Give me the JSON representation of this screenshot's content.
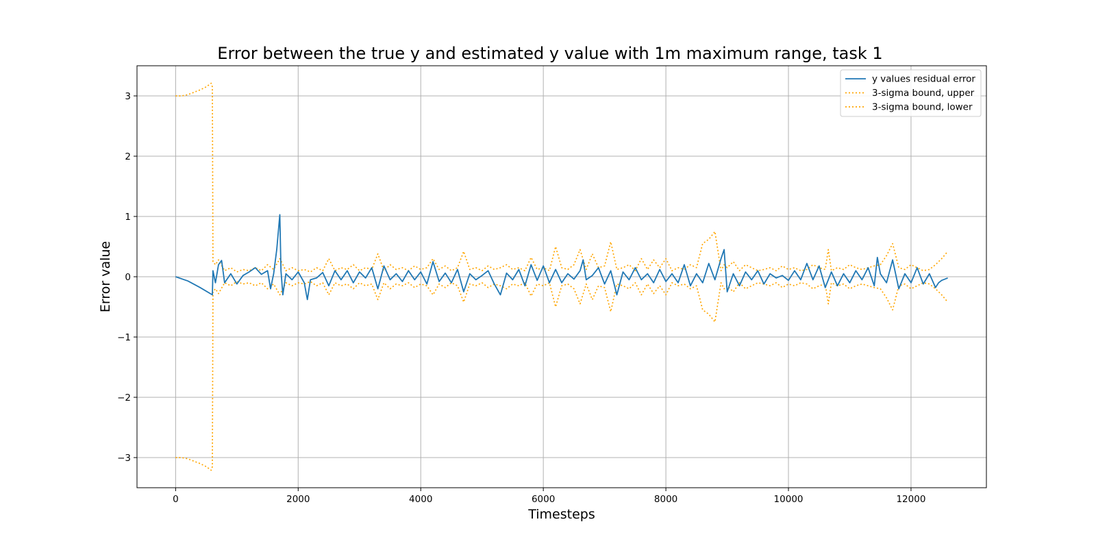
{
  "chart_data": {
    "type": "line",
    "title": "Error between the true y and estimated y value with 1m maximum range, task 1",
    "xlabel": "Timesteps",
    "ylabel": "Error value",
    "xlim": [
      -630,
      13230
    ],
    "ylim": [
      -3.5,
      3.5
    ],
    "xticks": [
      0,
      2000,
      4000,
      6000,
      8000,
      10000,
      12000
    ],
    "xtick_labels": [
      "0",
      "2000",
      "4000",
      "6000",
      "8000",
      "10000",
      "12000"
    ],
    "yticks": [
      -3,
      -2,
      -1,
      0,
      1,
      2,
      3
    ],
    "ytick_labels": [
      "−3",
      "−2",
      "−1",
      "0",
      "1",
      "2",
      "3"
    ],
    "grid": true,
    "legend_position": "top-right",
    "series": [
      {
        "name": "y values residual error",
        "color": "#1f77b4",
        "style": "solid",
        "x": [
          0,
          200,
          400,
          600,
          610,
          650,
          700,
          750,
          800,
          900,
          1000,
          1100,
          1200,
          1300,
          1400,
          1500,
          1550,
          1600,
          1650,
          1700,
          1720,
          1750,
          1800,
          1900,
          2000,
          2100,
          2150,
          2200,
          2300,
          2400,
          2500,
          2600,
          2700,
          2800,
          2900,
          3000,
          3100,
          3200,
          3300,
          3400,
          3500,
          3600,
          3700,
          3800,
          3900,
          4000,
          4100,
          4200,
          4300,
          4400,
          4500,
          4600,
          4700,
          4800,
          4900,
          5000,
          5100,
          5200,
          5300,
          5400,
          5500,
          5600,
          5700,
          5800,
          5900,
          6000,
          6100,
          6200,
          6300,
          6400,
          6500,
          6600,
          6650,
          6700,
          6800,
          6900,
          7000,
          7100,
          7200,
          7300,
          7400,
          7500,
          7600,
          7700,
          7800,
          7900,
          8000,
          8100,
          8200,
          8300,
          8400,
          8500,
          8600,
          8700,
          8800,
          8900,
          8950,
          9000,
          9100,
          9200,
          9300,
          9400,
          9500,
          9600,
          9700,
          9800,
          9900,
          10000,
          10100,
          10200,
          10300,
          10400,
          10500,
          10600,
          10700,
          10800,
          10900,
          11000,
          11100,
          11200,
          11300,
          11400,
          11450,
          11500,
          11600,
          11700,
          11800,
          11900,
          12000,
          12100,
          12200,
          12300,
          12400,
          12450,
          12500,
          12600
        ],
        "y": [
          0.0,
          -0.07,
          -0.18,
          -0.3,
          0.1,
          -0.1,
          0.2,
          0.27,
          -0.1,
          0.05,
          -0.12,
          0.02,
          0.08,
          0.15,
          0.04,
          0.1,
          -0.2,
          0.05,
          0.45,
          1.03,
          0.1,
          -0.3,
          0.05,
          -0.05,
          0.08,
          -0.1,
          -0.38,
          -0.05,
          -0.02,
          0.07,
          -0.15,
          0.1,
          -0.05,
          0.1,
          -0.1,
          0.08,
          -0.02,
          0.15,
          -0.2,
          0.18,
          -0.05,
          0.05,
          -0.08,
          0.1,
          -0.05,
          0.08,
          -0.12,
          0.25,
          -0.08,
          0.06,
          -0.1,
          0.12,
          -0.25,
          0.05,
          -0.05,
          0.02,
          0.1,
          -0.12,
          -0.3,
          0.06,
          -0.05,
          0.12,
          -0.15,
          0.2,
          -0.06,
          0.18,
          -0.1,
          0.12,
          -0.1,
          0.05,
          -0.04,
          0.1,
          0.28,
          -0.05,
          0.02,
          0.15,
          -0.12,
          0.1,
          -0.3,
          0.08,
          -0.05,
          0.15,
          -0.05,
          0.05,
          -0.1,
          0.12,
          -0.08,
          0.05,
          -0.1,
          0.2,
          -0.15,
          0.05,
          -0.1,
          0.22,
          -0.05,
          0.3,
          0.45,
          -0.25,
          0.05,
          -0.15,
          0.08,
          -0.05,
          0.1,
          -0.12,
          0.05,
          -0.02,
          0.02,
          -0.06,
          0.1,
          -0.05,
          0.22,
          -0.05,
          0.18,
          -0.18,
          0.08,
          -0.15,
          0.05,
          -0.1,
          0.1,
          -0.05,
          0.15,
          -0.15,
          0.32,
          0.05,
          -0.1,
          0.28,
          -0.2,
          0.05,
          -0.1,
          0.15,
          -0.12,
          0.05,
          -0.18,
          -0.1,
          -0.06,
          -0.02
        ]
      },
      {
        "name": "3-sigma bound, upper",
        "color": "#ffa500",
        "style": "dotted",
        "x": [
          0,
          100,
          200,
          300,
          400,
          500,
          580,
          600,
          610,
          650,
          700,
          800,
          900,
          1000,
          1100,
          1200,
          1300,
          1400,
          1500,
          1600,
          1700,
          1800,
          1900,
          2000,
          2100,
          2200,
          2300,
          2400,
          2500,
          2600,
          2700,
          2800,
          2900,
          3000,
          3100,
          3200,
          3300,
          3400,
          3500,
          3600,
          3700,
          3800,
          3900,
          4000,
          4100,
          4200,
          4300,
          4400,
          4500,
          4600,
          4700,
          4800,
          4900,
          5000,
          5100,
          5200,
          5300,
          5400,
          5500,
          5600,
          5700,
          5800,
          5900,
          6000,
          6100,
          6200,
          6300,
          6400,
          6500,
          6600,
          6700,
          6800,
          6900,
          7000,
          7100,
          7200,
          7300,
          7400,
          7500,
          7600,
          7700,
          7800,
          7900,
          8000,
          8100,
          8200,
          8300,
          8400,
          8500,
          8600,
          8700,
          8800,
          8900,
          8950,
          9000,
          9100,
          9200,
          9300,
          9400,
          9500,
          9600,
          9700,
          9800,
          9900,
          10000,
          10100,
          10200,
          10300,
          10400,
          10500,
          10600,
          10650,
          10700,
          10800,
          10900,
          11000,
          11100,
          11200,
          11300,
          11400,
          11500,
          11600,
          11700,
          11800,
          11900,
          12000,
          12100,
          12200,
          12300,
          12400,
          12500,
          12600
        ],
        "y": [
          3.0,
          3.0,
          3.02,
          3.06,
          3.1,
          3.15,
          3.21,
          3.15,
          0.25,
          0.2,
          0.28,
          0.1,
          0.15,
          0.08,
          0.12,
          0.1,
          0.15,
          0.1,
          0.2,
          0.12,
          0.3,
          0.1,
          0.15,
          0.1,
          0.12,
          0.08,
          0.15,
          0.1,
          0.3,
          0.1,
          0.15,
          0.12,
          0.2,
          0.1,
          0.15,
          0.12,
          0.38,
          0.1,
          0.2,
          0.12,
          0.15,
          0.1,
          0.18,
          0.12,
          0.15,
          0.3,
          0.12,
          0.18,
          0.1,
          0.15,
          0.42,
          0.12,
          0.15,
          0.1,
          0.18,
          0.12,
          0.15,
          0.2,
          0.12,
          0.15,
          0.1,
          0.32,
          0.12,
          0.15,
          0.1,
          0.5,
          0.15,
          0.12,
          0.2,
          0.45,
          0.12,
          0.38,
          0.15,
          0.18,
          0.58,
          0.12,
          0.15,
          0.2,
          0.1,
          0.3,
          0.12,
          0.28,
          0.15,
          0.3,
          0.1,
          0.15,
          0.12,
          0.2,
          0.15,
          0.55,
          0.62,
          0.75,
          0.1,
          0.2,
          0.15,
          0.25,
          0.1,
          0.2,
          0.15,
          0.1,
          0.12,
          0.15,
          0.1,
          0.18,
          0.12,
          0.15,
          0.1,
          0.12,
          0.2,
          0.15,
          0.12,
          0.45,
          0.1,
          0.15,
          0.12,
          0.2,
          0.15,
          0.12,
          0.15,
          0.18,
          0.2,
          0.35,
          0.55,
          0.15,
          0.12,
          0.2,
          0.15,
          0.1,
          0.12,
          0.2,
          0.3,
          0.42
        ]
      },
      {
        "name": "3-sigma bound, lower",
        "color": "#ffa500",
        "style": "dotted",
        "x": [
          0,
          100,
          200,
          300,
          400,
          500,
          580,
          600,
          610,
          650,
          700,
          800,
          900,
          1000,
          1100,
          1200,
          1300,
          1400,
          1500,
          1600,
          1700,
          1800,
          1900,
          2000,
          2100,
          2200,
          2300,
          2400,
          2500,
          2600,
          2700,
          2800,
          2900,
          3000,
          3100,
          3200,
          3300,
          3400,
          3500,
          3600,
          3700,
          3800,
          3900,
          4000,
          4100,
          4200,
          4300,
          4400,
          4500,
          4600,
          4700,
          4800,
          4900,
          5000,
          5100,
          5200,
          5300,
          5400,
          5500,
          5600,
          5700,
          5800,
          5900,
          6000,
          6100,
          6200,
          6300,
          6400,
          6500,
          6600,
          6700,
          6800,
          6900,
          7000,
          7100,
          7200,
          7300,
          7400,
          7500,
          7600,
          7700,
          7800,
          7900,
          8000,
          8100,
          8200,
          8300,
          8400,
          8500,
          8600,
          8700,
          8800,
          8900,
          8950,
          9000,
          9100,
          9200,
          9300,
          9400,
          9500,
          9600,
          9700,
          9800,
          9900,
          10000,
          10100,
          10200,
          10300,
          10400,
          10500,
          10600,
          10650,
          10700,
          10800,
          10900,
          11000,
          11100,
          11200,
          11300,
          11400,
          11500,
          11600,
          11700,
          11800,
          11900,
          12000,
          12100,
          12200,
          12300,
          12400,
          12500,
          12600
        ],
        "y": [
          -3.0,
          -3.0,
          -3.02,
          -3.06,
          -3.1,
          -3.15,
          -3.21,
          -3.15,
          -0.25,
          -0.2,
          -0.28,
          -0.1,
          -0.15,
          -0.08,
          -0.12,
          -0.1,
          -0.15,
          -0.1,
          -0.2,
          -0.12,
          -0.3,
          -0.1,
          -0.15,
          -0.1,
          -0.12,
          -0.08,
          -0.15,
          -0.1,
          -0.3,
          -0.1,
          -0.15,
          -0.12,
          -0.2,
          -0.1,
          -0.15,
          -0.12,
          -0.38,
          -0.1,
          -0.2,
          -0.12,
          -0.15,
          -0.1,
          -0.18,
          -0.12,
          -0.15,
          -0.3,
          -0.12,
          -0.18,
          -0.1,
          -0.15,
          -0.42,
          -0.12,
          -0.15,
          -0.1,
          -0.18,
          -0.12,
          -0.15,
          -0.2,
          -0.12,
          -0.15,
          -0.1,
          -0.32,
          -0.12,
          -0.15,
          -0.1,
          -0.5,
          -0.15,
          -0.12,
          -0.2,
          -0.45,
          -0.12,
          -0.38,
          -0.15,
          -0.18,
          -0.58,
          -0.12,
          -0.15,
          -0.2,
          -0.1,
          -0.3,
          -0.12,
          -0.28,
          -0.15,
          -0.3,
          -0.1,
          -0.15,
          -0.12,
          -0.2,
          -0.15,
          -0.55,
          -0.62,
          -0.75,
          -0.1,
          -0.2,
          -0.15,
          -0.25,
          -0.1,
          -0.2,
          -0.15,
          -0.1,
          -0.12,
          -0.15,
          -0.1,
          -0.18,
          -0.12,
          -0.15,
          -0.1,
          -0.12,
          -0.2,
          -0.15,
          -0.12,
          -0.45,
          -0.1,
          -0.15,
          -0.12,
          -0.2,
          -0.15,
          -0.12,
          -0.15,
          -0.18,
          -0.2,
          -0.35,
          -0.55,
          -0.15,
          -0.12,
          -0.2,
          -0.15,
          -0.1,
          -0.12,
          -0.2,
          -0.3,
          -0.42
        ]
      }
    ]
  }
}
